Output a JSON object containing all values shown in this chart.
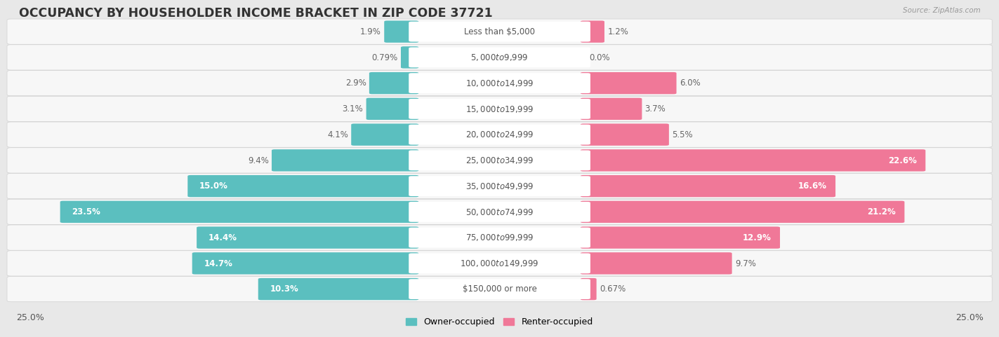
{
  "title": "OCCUPANCY BY HOUSEHOLDER INCOME BRACKET IN ZIP CODE 37721",
  "source": "Source: ZipAtlas.com",
  "categories": [
    "Less than $5,000",
    "$5,000 to $9,999",
    "$10,000 to $14,999",
    "$15,000 to $19,999",
    "$20,000 to $24,999",
    "$25,000 to $34,999",
    "$35,000 to $49,999",
    "$50,000 to $74,999",
    "$75,000 to $99,999",
    "$100,000 to $149,999",
    "$150,000 or more"
  ],
  "owner_values": [
    1.9,
    0.79,
    2.9,
    3.1,
    4.1,
    9.4,
    15.0,
    23.5,
    14.4,
    14.7,
    10.3
  ],
  "renter_values": [
    1.2,
    0.0,
    6.0,
    3.7,
    5.5,
    22.6,
    16.6,
    21.2,
    12.9,
    9.7,
    0.67
  ],
  "owner_color": "#5bbfbf",
  "renter_color": "#f07898",
  "owner_label": "Owner-occupied",
  "renter_label": "Renter-occupied",
  "max_value": 25.0,
  "title_fontsize": 12.5,
  "label_fontsize": 8.5,
  "category_fontsize": 8.5,
  "bg_color": "#e8e8e8",
  "row_bg_color": "#f2f2f2",
  "bar_inner_bg": "#e0e0e8"
}
